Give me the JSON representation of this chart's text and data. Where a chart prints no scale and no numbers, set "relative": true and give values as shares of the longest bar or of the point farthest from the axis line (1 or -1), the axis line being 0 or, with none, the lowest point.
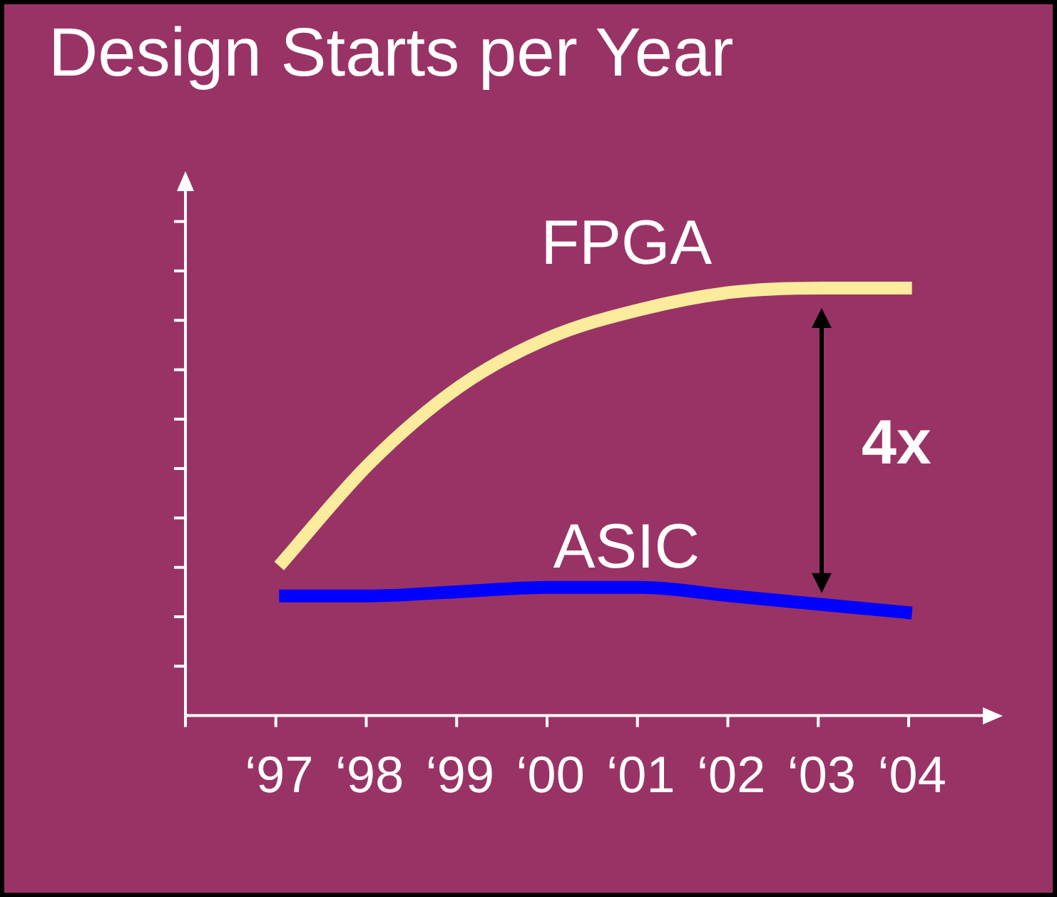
{
  "chart_data": {
    "type": "line",
    "title": "Design Starts per Year",
    "relative": true,
    "categories": [
      "‘97",
      "‘98",
      "‘99",
      "‘00",
      "‘01",
      "‘02",
      "‘03",
      "‘04"
    ],
    "series": [
      {
        "name": "FPGA",
        "color": "#fbeb9c",
        "values": [
          0.35,
          0.59,
          0.77,
          0.885,
          0.95,
          0.99,
          1,
          1
        ]
      },
      {
        "name": "ASIC",
        "color": "#0000ff",
        "values": [
          0.28,
          0.28,
          0.29,
          0.3,
          0.3,
          0.28,
          0.26,
          0.24
        ]
      }
    ],
    "annotations": [
      "4x"
    ],
    "grid": false,
    "legend": false,
    "marker": "none",
    "line_style": "solid"
  }
}
